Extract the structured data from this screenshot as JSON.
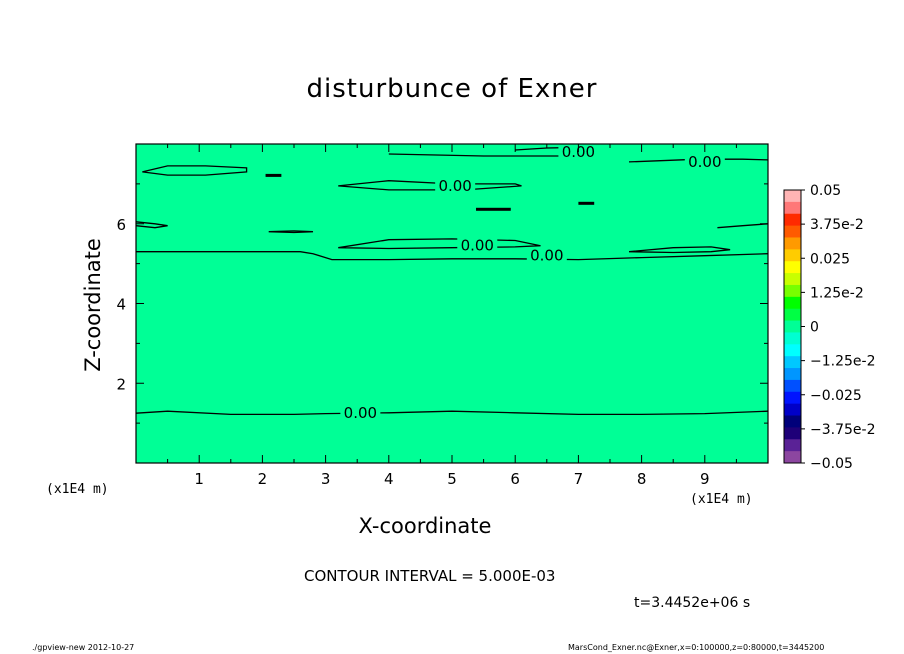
{
  "chart_data": {
    "type": "heatmap",
    "title": "disturbunce of Exner",
    "xlabel": "X-coordinate",
    "ylabel": "Z-coordinate",
    "x_unit_label": "(x1E4 m)",
    "y_unit_label": "(x1E4 m)",
    "xlim": [
      0,
      10
    ],
    "ylim": [
      0,
      8
    ],
    "x_ticks": [
      1,
      2,
      3,
      4,
      5,
      6,
      7,
      8,
      9
    ],
    "y_ticks": [
      2,
      4,
      6
    ],
    "field_value": 0,
    "colorbar": {
      "labels": [
        "0.05",
        "3.75e-2",
        "0.025",
        "1.25e-2",
        "0",
        "−1.25e-2",
        "−0.025",
        "−3.75e-2",
        "−0.05"
      ],
      "levels": [
        0.05,
        0.0375,
        0.025,
        0.0125,
        0,
        -0.0125,
        -0.025,
        -0.0375,
        -0.05
      ],
      "colors": [
        "#ffb4b4",
        "#ff7878",
        "#ff2a00",
        "#ff5a00",
        "#ff9a00",
        "#ffcc00",
        "#ffff00",
        "#c8ff00",
        "#78ff00",
        "#00ff00",
        "#00ff44",
        "#00ff96",
        "#00ffd2",
        "#00ffff",
        "#00c8ff",
        "#0096ff",
        "#0050ff",
        "#0014ff",
        "#0000c8",
        "#00007a",
        "#1e0078",
        "#5a2296",
        "#8c46a0"
      ]
    },
    "contour_labels": [
      "0.00",
      "0.00",
      "0.00",
      "0.00",
      "0.00",
      "0.00"
    ],
    "contour_label_positions": [
      {
        "x": 7.0,
        "y": 7.8
      },
      {
        "x": 9.0,
        "y": 7.55
      },
      {
        "x": 5.05,
        "y": 6.95
      },
      {
        "x": 5.4,
        "y": 5.45
      },
      {
        "x": 6.5,
        "y": 5.2
      },
      {
        "x": 3.55,
        "y": 1.25
      }
    ],
    "contours": [
      {
        "x": [
          0,
          0.5,
          1.5,
          2.6,
          2.8,
          3.1,
          4,
          5,
          6,
          7,
          8,
          9,
          10
        ],
        "y": [
          5.3,
          5.3,
          5.3,
          5.3,
          5.25,
          5.1,
          5.1,
          5.12,
          5.12,
          5.1,
          5.15,
          5.2,
          5.25
        ]
      },
      {
        "x": [
          0,
          0.5,
          1.5,
          2.5,
          3,
          4,
          5,
          6,
          7,
          8,
          9,
          10
        ],
        "y": [
          1.25,
          1.3,
          1.22,
          1.22,
          1.24,
          1.26,
          1.3,
          1.26,
          1.22,
          1.22,
          1.24,
          1.3
        ]
      },
      {
        "x": [
          3.2,
          4.0,
          5.0,
          6.0,
          6.4,
          6.0,
          5.0,
          4.0,
          3.2
        ],
        "y": [
          5.4,
          5.6,
          5.62,
          5.58,
          5.45,
          5.42,
          5.4,
          5.38,
          5.4
        ]
      },
      {
        "x": [
          3.2,
          4.0,
          5.0,
          6.0,
          6.1,
          5.2,
          4.0,
          3.2
        ],
        "y": [
          6.95,
          7.08,
          7.0,
          7.0,
          6.95,
          6.85,
          6.85,
          6.95
        ]
      },
      {
        "x": [
          0.1,
          0.5,
          1.1,
          1.75,
          1.75,
          1.1,
          0.5,
          0.1
        ],
        "y": [
          7.3,
          7.45,
          7.45,
          7.4,
          7.3,
          7.22,
          7.22,
          7.3
        ]
      },
      {
        "x": [
          7.8,
          8.5,
          9.1,
          9.4,
          9.1,
          8.5,
          7.8
        ],
        "y": [
          5.3,
          5.4,
          5.42,
          5.35,
          5.3,
          5.28,
          5.3
        ]
      },
      {
        "x": [
          7.8,
          8.3,
          8.9,
          9.6,
          10
        ],
        "y": [
          7.55,
          7.58,
          7.62,
          7.62,
          7.6
        ]
      },
      {
        "x": [
          4.0,
          5.5,
          6.8,
          7.2
        ],
        "y": [
          7.75,
          7.7,
          7.7,
          7.8
        ]
      },
      {
        "x": [
          6.0,
          6.5,
          7.2
        ],
        "y": [
          7.85,
          7.9,
          7.92
        ]
      },
      {
        "x": [
          0,
          0.3,
          0.5,
          0.3,
          0
        ],
        "y": [
          6.05,
          6.0,
          5.95,
          5.9,
          5.95
        ]
      },
      {
        "x": [
          9.2,
          9.6,
          10
        ],
        "y": [
          5.9,
          5.95,
          6.0
        ]
      },
      {
        "x": [
          2.1,
          2.5,
          2.8,
          2.5,
          2.1
        ],
        "y": [
          5.8,
          5.82,
          5.8,
          5.78,
          5.8
        ]
      }
    ],
    "small_features": [
      {
        "x": 5.38,
        "y": 6.35,
        "w": 0.55,
        "h": 0.1
      },
      {
        "x": 7.0,
        "y": 6.5,
        "w": 0.25,
        "h": 0.07
      },
      {
        "x": 2.05,
        "y": 7.2,
        "w": 0.25,
        "h": 0.06
      }
    ]
  },
  "contour_interval": "CONTOUR INTERVAL = 5.000E-03",
  "time_label": "t=3.4452e+06 s",
  "footer_left": "./gpview-new   2012-10-27",
  "footer_right": "MarsCond_Exner.nc@Exner,x=0:100000,z=0:80000,t=3445200"
}
